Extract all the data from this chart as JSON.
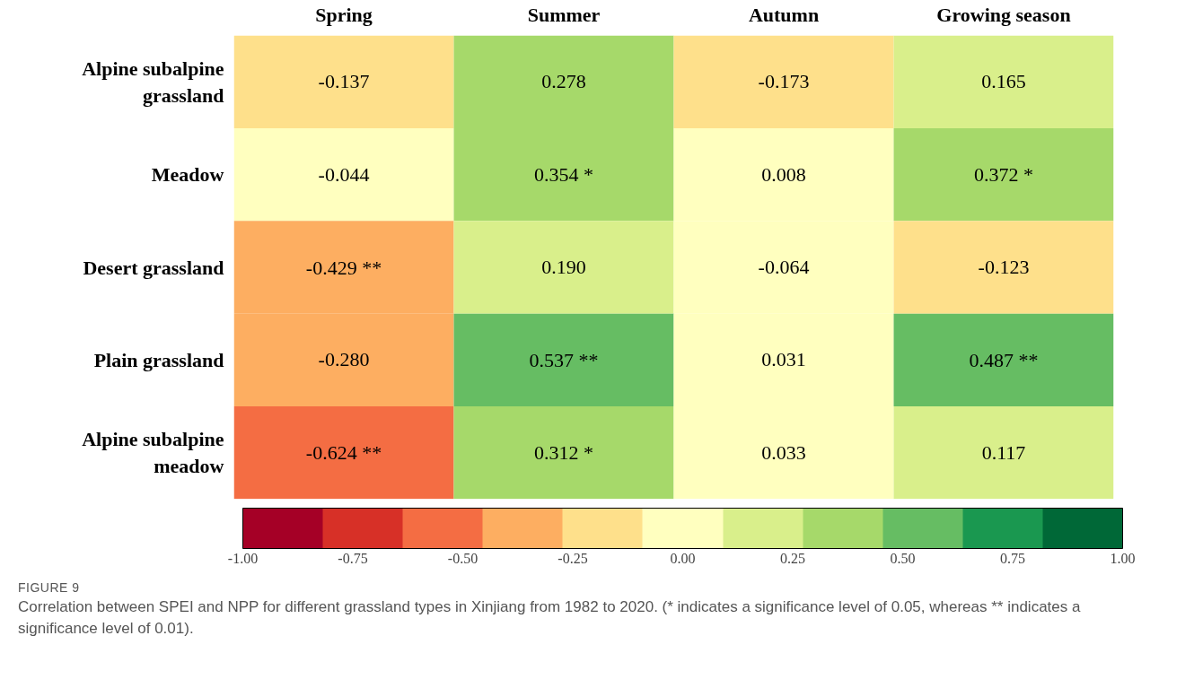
{
  "chart_data": {
    "type": "heatmap",
    "categories": [
      "Spring",
      "Summer",
      "Autumn",
      "Growing season"
    ],
    "y_categories": [
      "Alpine subalpine grassland",
      "Meadow",
      "Desert grassland",
      "Plain grassland",
      "Alpine subalpine meadow"
    ],
    "cells": [
      [
        -0.137,
        0.278,
        -0.173,
        0.165
      ],
      [
        -0.044,
        0.354,
        0.008,
        0.372
      ],
      [
        -0.429,
        0.19,
        -0.064,
        -0.123
      ],
      [
        -0.28,
        0.537,
        0.031,
        0.487
      ],
      [
        -0.624,
        0.312,
        0.033,
        0.117
      ]
    ],
    "cell_labels": [
      [
        "-0.137",
        "0.278",
        "-0.173",
        "0.165"
      ],
      [
        "-0.044",
        "0.354 *",
        "0.008",
        "0.372 *"
      ],
      [
        "-0.429 **",
        "0.190",
        "-0.064",
        "-0.123"
      ],
      [
        "-0.280",
        "0.537 **",
        "0.031",
        "0.487 **"
      ],
      [
        "-0.624 **",
        "0.312 *",
        "0.033",
        "0.117"
      ]
    ],
    "clim": [
      -1,
      1
    ],
    "cticks": [
      {
        "value": -1,
        "label": "-1.00"
      },
      {
        "value": -0.75,
        "label": "-0.75"
      },
      {
        "value": -0.5,
        "label": "-0.50"
      },
      {
        "value": -0.25,
        "label": "-0.25"
      },
      {
        "value": 0,
        "label": "0.00"
      },
      {
        "value": 0.25,
        "label": "0.25"
      },
      {
        "value": 0.5,
        "label": "0.50"
      },
      {
        "value": 0.75,
        "label": "0.75"
      },
      {
        "value": 1,
        "label": "1.00"
      }
    ],
    "annotations": [
      "FIGURE 9",
      "Correlation between SPEI and NPP for different grassland types in Xinjiang from 1982 to 2020. (* indicates a significance level of 0.05, whereas ** indicates a significance level of 0.01)."
    ]
  }
}
